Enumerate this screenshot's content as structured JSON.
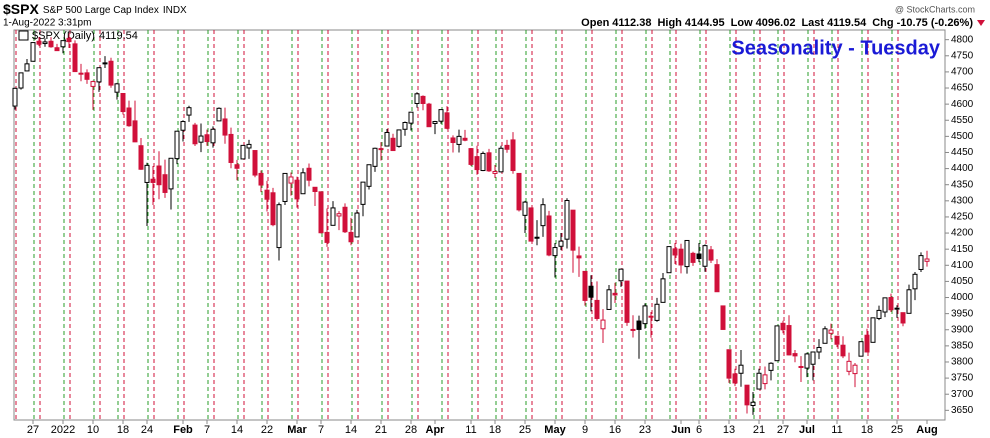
{
  "header": {
    "symbol": "$SPX",
    "name": "S&P 500 Large Cap Index",
    "exchange": "INDX",
    "date": "1-Aug-2022 3:31pm",
    "open_label": "Open",
    "high_label": "High",
    "low_label": "Low",
    "last_label": "Last",
    "change_label": "Chg",
    "change": -10.75,
    "change_pct": "(-0.26%)",
    "watermark": "@ StockCharts.com"
  },
  "chart_data": {
    "type": "candlestick",
    "title": "Seasonality - Tuesday",
    "legend_label": "$SPX (Daily)",
    "up_color": "#000000",
    "down_color": "#d0103a",
    "title_color": "#1a1ad6",
    "categories": [
      null,
      null,
      null,
      "27",
      null,
      null,
      null,
      null,
      "2022",
      null,
      null,
      null,
      null,
      "10",
      null,
      null,
      null,
      null,
      "18",
      null,
      null,
      null,
      "24",
      null,
      null,
      null,
      null,
      null,
      "Feb",
      null,
      null,
      null,
      "7",
      null,
      null,
      null,
      null,
      "14",
      null,
      null,
      null,
      null,
      "22",
      null,
      null,
      null,
      null,
      "Mar",
      null,
      null,
      null,
      "7",
      null,
      null,
      null,
      null,
      "14",
      null,
      null,
      null,
      null,
      "21",
      null,
      null,
      null,
      null,
      "28",
      null,
      null,
      null,
      "Apr",
      null,
      null,
      null,
      null,
      null,
      "11",
      null,
      null,
      null,
      "18",
      null,
      null,
      null,
      null,
      "25",
      null,
      null,
      null,
      null,
      "May",
      null,
      null,
      null,
      null,
      "9",
      null,
      null,
      null,
      null,
      "16",
      null,
      null,
      null,
      null,
      "23",
      null,
      null,
      null,
      null,
      null,
      "Jun",
      null,
      null,
      "6",
      null,
      null,
      null,
      null,
      "13",
      null,
      null,
      null,
      null,
      "21",
      null,
      null,
      null,
      "27",
      null,
      null,
      null,
      "Jul",
      null,
      null,
      null,
      null,
      "11",
      null,
      null,
      null,
      null,
      "18",
      null,
      null,
      null,
      null,
      "25",
      null,
      null,
      null,
      null,
      "Aug"
    ],
    "open": [
      4594,
      4650,
      4703,
      4733,
      4795,
      4788,
      4795,
      4775,
      4778,
      4804,
      4787,
      4693,
      4697,
      4655,
      4669,
      4728,
      4733,
      4637,
      4633,
      4588,
      4548,
      4471,
      4357,
      4367,
      4408,
      4381,
      4337,
      4431,
      4519,
      4566,
      4535,
      4482,
      4505,
      4480,
      4548,
      4554,
      4506,
      4412,
      4430,
      4464,
      4456,
      4385,
      4333,
      4325,
      4155,
      4298,
      4355,
      4364,
      4322,
      4401,
      4342,
      4328,
      4202,
      4224,
      4253,
      4280,
      4202,
      4188,
      4289,
      4345,
      4407,
      4462,
      4470,
      4494,
      4469,
      4522,
      4541,
      4602,
      4624,
      4600,
      4540,
      4547,
      4573,
      4495,
      4475,
      4494,
      4462,
      4437,
      4394,
      4449,
      4385,
      4390,
      4472,
      4489,
      4385,
      4255,
      4278,
      4187,
      4223,
      4253,
      4130,
      4159,
      4181,
      4271,
      4129,
      4081,
      4035,
      3991,
      3903,
      3963,
      4013,
      4052,
      4051,
      3900,
      3927,
      3919,
      3942,
      3929,
      3985,
      4077,
      4151,
      4150,
      4096,
      4137,
      4135,
      4097,
      4148,
      4102,
      3974,
      3838,
      3763,
      3765,
      3728,
      3665,
      3716,
      3733,
      3774,
      3804,
      3920,
      3913,
      3826,
      3786,
      3781,
      3793,
      3831,
      3858,
      3889,
      3880,
      3852,
      3771,
      3764,
      3818,
      3883,
      3861,
      3935,
      3955,
      4000,
      3966,
      3953,
      3951,
      4027,
      4087,
      4112.38
    ],
    "high": [
      4651,
      4698,
      4740,
      4791,
      4808,
      4804,
      4808,
      4787,
      4797,
      4819,
      4798,
      4725,
      4708,
      4673,
      4714,
      4749,
      4744,
      4666,
      4633,
      4611,
      4611,
      4495,
      4418,
      4408,
      4454,
      4428,
      4432,
      4517,
      4550,
      4595,
      4542,
      4540,
      4521,
      4531,
      4590,
      4589,
      4527,
      4427,
      4473,
      4489,
      4456,
      4394,
      4362,
      4340,
      4295,
      4385,
      4388,
      4375,
      4401,
      4416,
      4343,
      4328,
      4276,
      4299,
      4268,
      4292,
      4247,
      4272,
      4358,
      4412,
      4465,
      4482,
      4523,
      4508,
      4520,
      4546,
      4575,
      4637,
      4627,
      4604,
      4548,
      4583,
      4594,
      4503,
      4521,
      4520,
      4464,
      4471,
      4453,
      4461,
      4411,
      4471,
      4489,
      4513,
      4386,
      4300,
      4278,
      4240,
      4308,
      4269,
      4169,
      4200,
      4308,
      4271,
      4158,
      4081,
      4069,
      4050,
      3964,
      4039,
      4046,
      4090,
      4051,
      3945,
      3944,
      3982,
      3955,
      3999,
      4076,
      4158,
      4169,
      4167,
      4177,
      4142,
      4169,
      4165,
      4160,
      4119,
      3974,
      3838,
      3779,
      3837,
      3728,
      3707,
      3779,
      3786,
      3799,
      3913,
      3928,
      3945,
      3837,
      3818,
      3829,
      3832,
      3871,
      3911,
      3919,
      3880,
      3880,
      3829,
      3797,
      3863,
      3903,
      3937,
      3975,
      3999,
      4012,
      3976,
      3953,
      4040,
      4079,
      4140,
      4144.95
    ],
    "low": [
      4583,
      4645,
      4703,
      4733,
      4780,
      4778,
      4775,
      4765,
      4758,
      4774,
      4700,
      4671,
      4663,
      4582,
      4638,
      4712,
      4651,
      4614,
      4568,
      4530,
      4482,
      4396,
      4222,
      4287,
      4305,
      4309,
      4273,
      4414,
      4484,
      4545,
      4470,
      4451,
      4471,
      4465,
      4548,
      4477,
      4401,
      4364,
      4430,
      4430,
      4373,
      4327,
      4267,
      4221,
      4115,
      4287,
      4316,
      4279,
      4322,
      4345,
      4284,
      4199,
      4157,
      4224,
      4209,
      4200,
      4162,
      4188,
      4252,
      4335,
      4390,
      4425,
      4470,
      4455,
      4465,
      4502,
      4518,
      4589,
      4581,
      4530,
      4507,
      4539,
      4522,
      4450,
      4450,
      4485,
      4408,
      4381,
      4392,
      4390,
      4371,
      4388,
      4449,
      4384,
      4267,
      4200,
      4175,
      4162,
      4188,
      4128,
      4062,
      4147,
      4152,
      4077,
      4064,
      3975,
      3957,
      3928,
      3859,
      3963,
      3983,
      4033,
      3912,
      3876,
      3810,
      3903,
      3875,
      3925,
      3985,
      4077,
      4104,
      4075,
      4074,
      4098,
      4110,
      4080,
      4107,
      4017,
      3900,
      3735,
      3725,
      3723,
      3640,
      3636,
      3716,
      3715,
      3743,
      3804,
      3889,
      3820,
      3799,
      3738,
      3753,
      3743,
      3809,
      3858,
      3870,
      3846,
      3812,
      3759,
      3722,
      3818,
      3831,
      3861,
      3930,
      3939,
      3955,
      3937,
      3911,
      3951,
      3992,
      4079,
      4096.02
    ],
    "close": [
      4649,
      4697,
      4725,
      4791,
      4786,
      4793,
      4778,
      4766,
      4797,
      4794,
      4701,
      4696,
      4677,
      4670,
      4713,
      4726,
      4659,
      4663,
      4577,
      4533,
      4483,
      4398,
      4410,
      4357,
      4350,
      4326,
      4432,
      4516,
      4546,
      4589,
      4477,
      4501,
      4484,
      4522,
      4587,
      4504,
      4419,
      4401,
      4472,
      4475,
      4380,
      4349,
      4305,
      4226,
      4288,
      4385,
      4374,
      4306,
      4387,
      4364,
      4329,
      4201,
      4171,
      4278,
      4260,
      4204,
      4173,
      4262,
      4358,
      4412,
      4463,
      4461,
      4512,
      4456,
      4520,
      4543,
      4575,
      4632,
      4602,
      4530,
      4546,
      4583,
      4525,
      4481,
      4500,
      4488,
      4413,
      4397,
      4447,
      4393,
      4391,
      4463,
      4460,
      4394,
      4272,
      4296,
      4175,
      4184,
      4288,
      4132,
      4155,
      4175,
      4301,
      4147,
      4123,
      3991,
      4001,
      3935,
      3930,
      4024,
      4008,
      4088,
      3923,
      3901,
      3901,
      3974,
      3941,
      3979,
      4058,
      4158,
      4132,
      4101,
      4177,
      4109,
      4121,
      4161,
      4116,
      4018,
      3901,
      3750,
      3735,
      3790,
      3667,
      3675,
      3765,
      3760,
      3796,
      3912,
      3900,
      3822,
      3819,
      3785,
      3825,
      3831,
      3845,
      3903,
      3899,
      3855,
      3819,
      3802,
      3790,
      3863,
      3831,
      3937,
      3960,
      3999,
      3962,
      3967,
      3921,
      4024,
      4072,
      4130,
      4119.54
    ],
    "ylim": [
      3620,
      4830
    ],
    "yticks": [
      3650,
      3700,
      3750,
      3800,
      3850,
      3900,
      3950,
      4000,
      4050,
      4100,
      4150,
      4200,
      4250,
      4300,
      4350,
      4400,
      4450,
      4500,
      4550,
      4600,
      4650,
      4700,
      4750,
      4800
    ]
  }
}
